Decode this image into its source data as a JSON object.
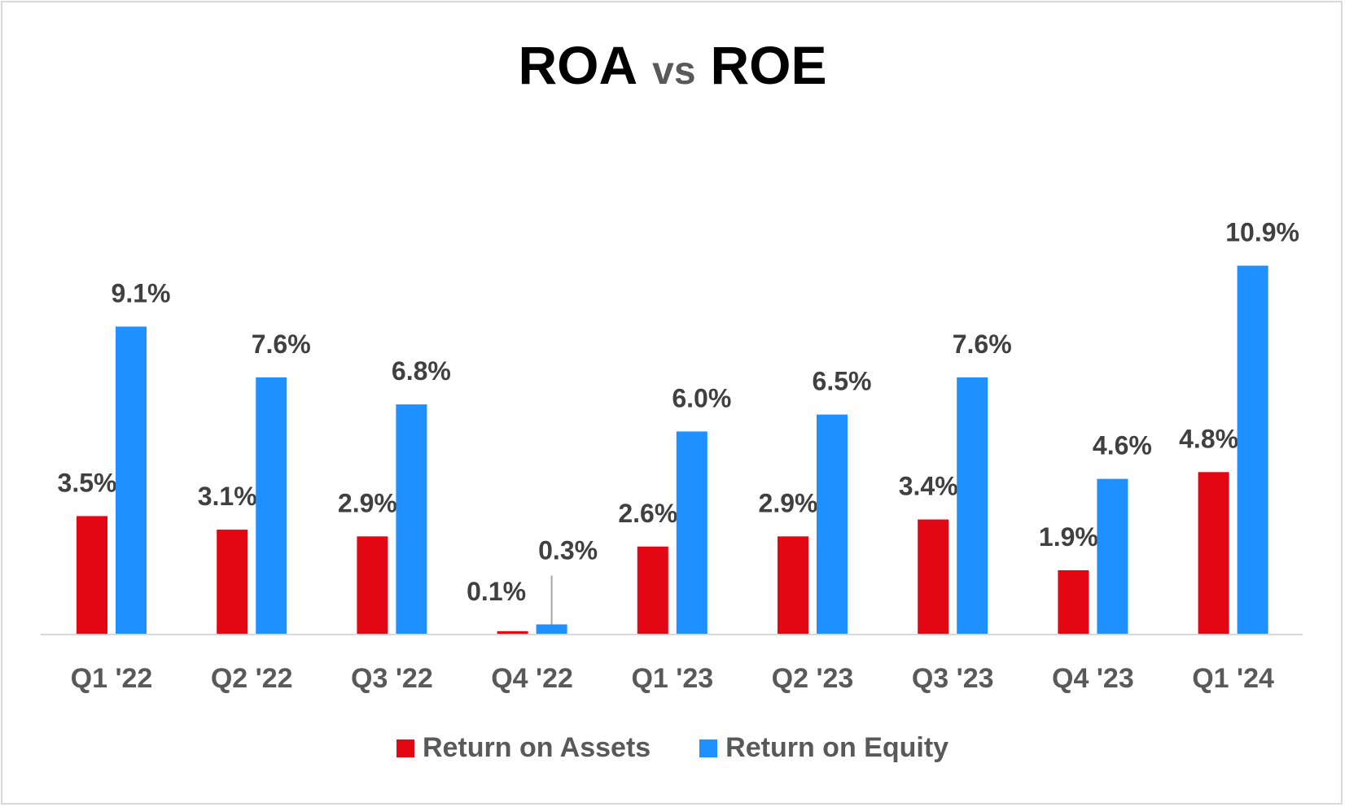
{
  "chart_data": {
    "type": "bar",
    "title": {
      "left": "ROA",
      "middle": "vs",
      "right": "ROE"
    },
    "categories": [
      "Q1 '22",
      "Q2 '22",
      "Q3 '22",
      "Q4 '22",
      "Q1 '23",
      "Q2 '23",
      "Q3 '23",
      "Q4 '23",
      "Q1 '24"
    ],
    "series": [
      {
        "name": "Return on Assets",
        "color": "#e30613",
        "values": [
          3.5,
          3.1,
          2.9,
          0.1,
          2.6,
          2.9,
          3.4,
          1.9,
          4.8
        ],
        "labels": [
          "3.5%",
          "3.1%",
          "2.9%",
          "0.1%",
          "2.6%",
          "2.9%",
          "3.4%",
          "1.9%",
          "4.8%"
        ]
      },
      {
        "name": "Return on Equity",
        "color": "#1e90ff",
        "values": [
          9.1,
          7.6,
          6.8,
          0.3,
          6.0,
          6.5,
          7.6,
          4.6,
          10.9
        ],
        "labels": [
          "9.1%",
          "7.6%",
          "6.8%",
          "0.3%",
          "6.0%",
          "6.5%",
          "7.6%",
          "4.6%",
          "10.9%"
        ]
      }
    ],
    "ylim": [
      0,
      11
    ],
    "grid": false,
    "legend_position": "bottom",
    "label_color": "#404040",
    "axis_color": "#d9d9d9"
  }
}
